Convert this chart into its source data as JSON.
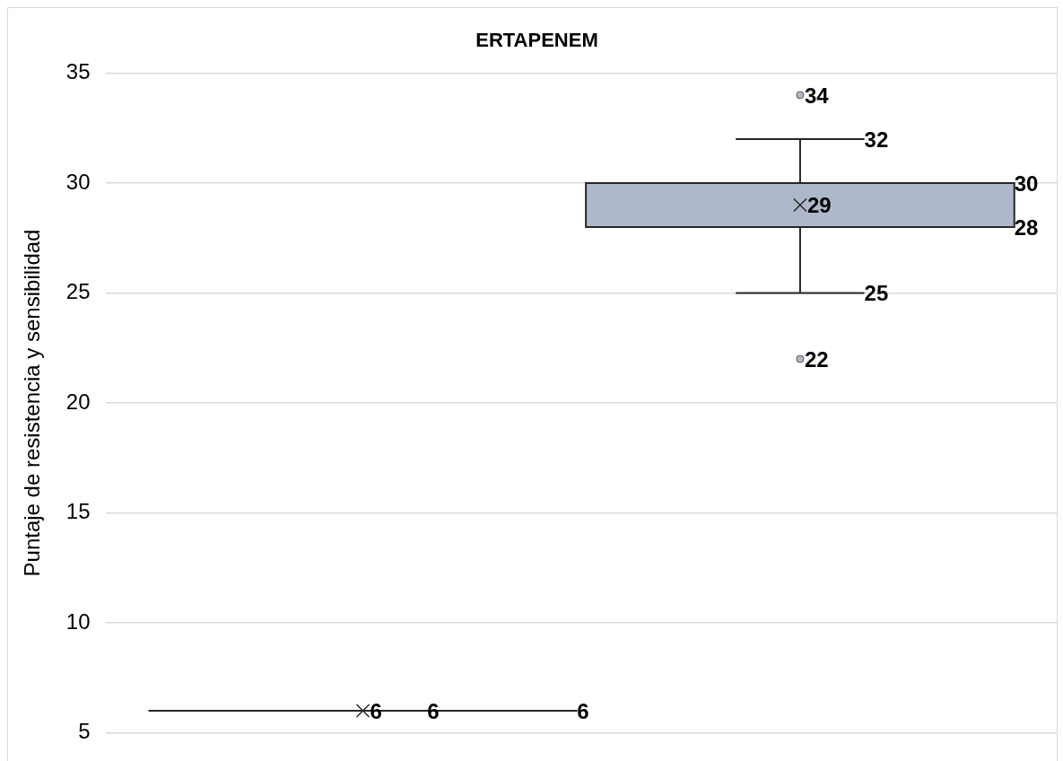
{
  "chart_data": {
    "type": "box",
    "title": "ERTAPENEM",
    "ylabel": "Puntaje de resistencia y sensibilidad",
    "categories": [
      null
    ],
    "series": [
      {
        "color": "#262626",
        "boxes": [
          {
            "low": 6,
            "q1": 6,
            "median": 6,
            "q3": 6,
            "high": 6,
            "mean": 6
          }
        ]
      },
      {
        "color": "#adb9ca",
        "boxes": [
          {
            "low": 25,
            "q1": 28,
            "median": 28,
            "q3": 30,
            "high": 32,
            "mean": 29,
            "outliers": [
              34,
              22
            ]
          }
        ]
      }
    ],
    "annotations": [
      "6",
      "6",
      "6",
      "29",
      "34",
      "22",
      "32",
      "25",
      "30",
      "28"
    ],
    "ylim": [
      5,
      35
    ],
    "yticks": [
      5,
      10,
      15,
      20,
      25,
      30,
      35
    ],
    "grid": "y",
    "legend": false
  }
}
